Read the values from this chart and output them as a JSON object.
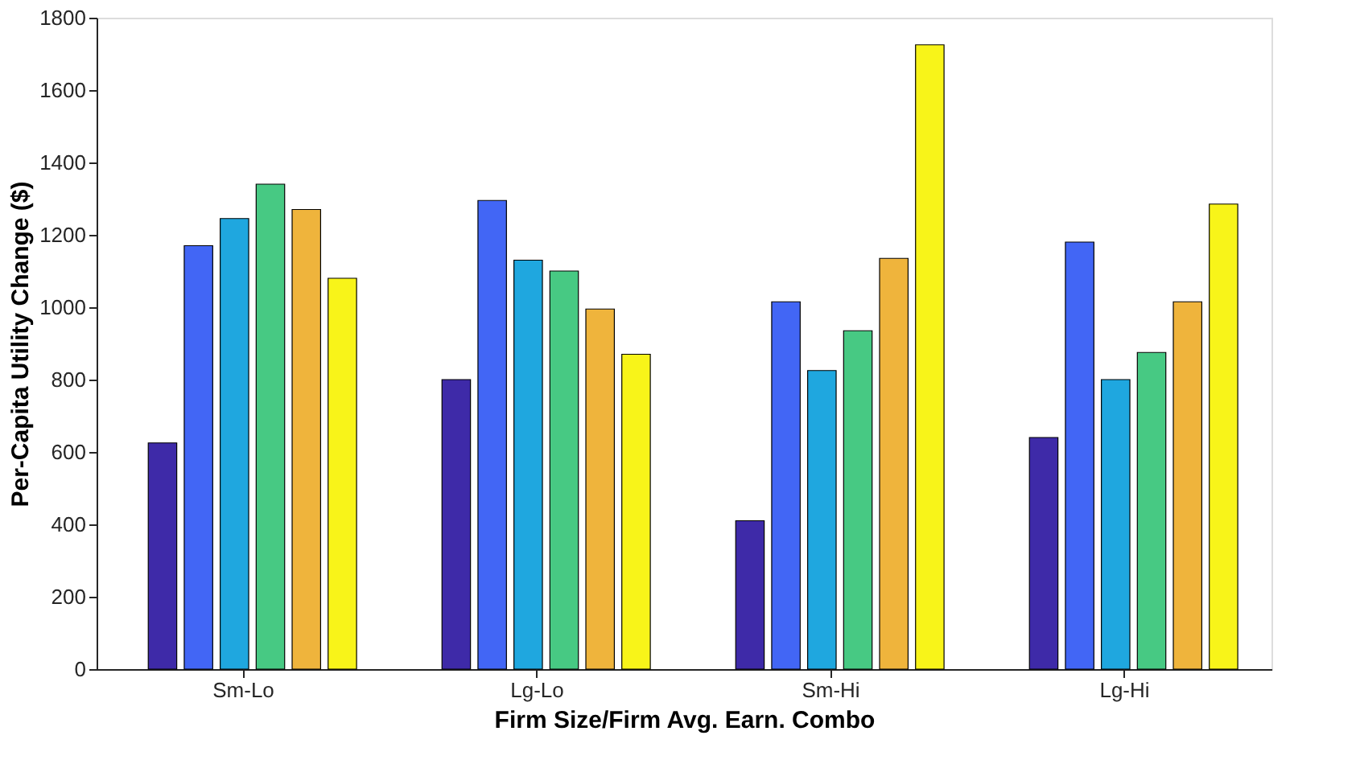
{
  "chart_data": {
    "type": "bar",
    "xlabel": "Firm Size/Firm Avg. Earn. Combo",
    "ylabel": "Per-Capita Utility Change ($)",
    "categories": [
      "Sm-Lo",
      "Lg-Lo",
      "Sm-Hi",
      "Lg-Hi"
    ],
    "series": [
      {
        "color": "#3e2aa8",
        "values": [
          625,
          800,
          410,
          640
        ]
      },
      {
        "color": "#4266f5",
        "values": [
          1170,
          1295,
          1015,
          1180
        ]
      },
      {
        "color": "#1fa7df",
        "values": [
          1245,
          1130,
          825,
          800
        ]
      },
      {
        "color": "#47c983",
        "values": [
          1340,
          1100,
          935,
          875
        ]
      },
      {
        "color": "#efb43c",
        "values": [
          1270,
          995,
          1135,
          1015
        ]
      },
      {
        "color": "#f8f419",
        "values": [
          1080,
          870,
          1725,
          1285
        ]
      }
    ],
    "ylim": [
      0,
      1800
    ],
    "yticks": [
      0,
      200,
      400,
      600,
      800,
      1000,
      1200,
      1400,
      1600,
      1800
    ],
    "grid": false,
    "legend": false
  }
}
